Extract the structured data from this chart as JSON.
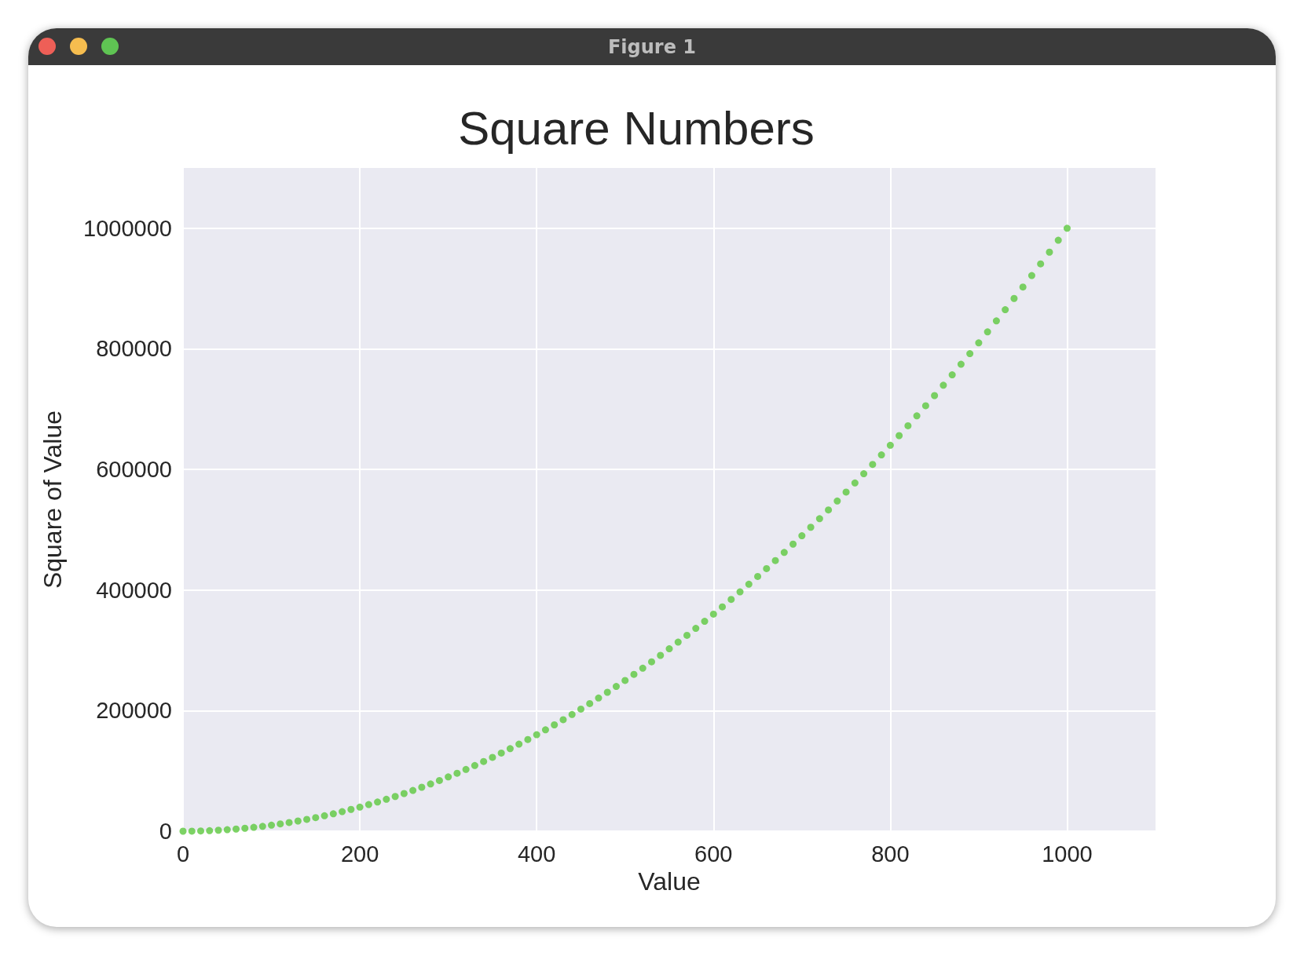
{
  "chart_data": {
    "type": "scatter",
    "title": "Square Numbers",
    "xlabel": "Value",
    "ylabel": "Square of Value",
    "annotations": [
      "Figure 1"
    ],
    "x": [
      0,
      10,
      20,
      30,
      40,
      50,
      60,
      70,
      80,
      90,
      100,
      110,
      120,
      130,
      140,
      150,
      160,
      170,
      180,
      190,
      200,
      210,
      220,
      230,
      240,
      250,
      260,
      270,
      280,
      290,
      300,
      310,
      320,
      330,
      340,
      350,
      360,
      370,
      380,
      390,
      400,
      410,
      420,
      430,
      440,
      450,
      460,
      470,
      480,
      490,
      500,
      510,
      520,
      530,
      540,
      550,
      560,
      570,
      580,
      590,
      600,
      610,
      620,
      630,
      640,
      650,
      660,
      670,
      680,
      690,
      700,
      710,
      720,
      730,
      740,
      750,
      760,
      770,
      780,
      790,
      800,
      810,
      820,
      830,
      840,
      850,
      860,
      870,
      880,
      890,
      900,
      910,
      920,
      930,
      940,
      950,
      960,
      970,
      980,
      990,
      1000
    ],
    "series": [
      {
        "color": "#5cc83e",
        "values": [
          0,
          100,
          400,
          900,
          1600,
          2500,
          3600,
          4900,
          6400,
          8100,
          10000,
          12100,
          14400,
          16900,
          19600,
          22500,
          25600,
          28900,
          32400,
          36100,
          40000,
          44100,
          48400,
          52900,
          57600,
          62500,
          67600,
          72900,
          78400,
          84100,
          90000,
          96100,
          102400,
          108900,
          115600,
          122500,
          129600,
          136900,
          144400,
          152100,
          160000,
          168100,
          176400,
          184900,
          193600,
          202500,
          211600,
          220900,
          230400,
          240100,
          250000,
          260100,
          270400,
          280900,
          291600,
          302500,
          313600,
          324900,
          336400,
          348100,
          360000,
          372100,
          384400,
          396900,
          409600,
          422500,
          435600,
          448900,
          462400,
          476100,
          490000,
          504100,
          518400,
          532900,
          547600,
          562500,
          577600,
          592900,
          608400,
          624100,
          640000,
          656100,
          672400,
          688900,
          705600,
          722500,
          739600,
          756900,
          774400,
          792100,
          810000,
          828100,
          846400,
          864900,
          883600,
          902500,
          921600,
          940900,
          960400,
          980100,
          1000000
        ]
      }
    ],
    "xlim": [
      0,
      1100
    ],
    "ylim": [
      0,
      1100000
    ],
    "xticks": [
      0,
      200,
      400,
      600,
      800,
      1000
    ],
    "yticks": [
      0,
      200000,
      400000,
      600000,
      800000,
      1000000
    ],
    "grid": true,
    "marker": "circle"
  }
}
